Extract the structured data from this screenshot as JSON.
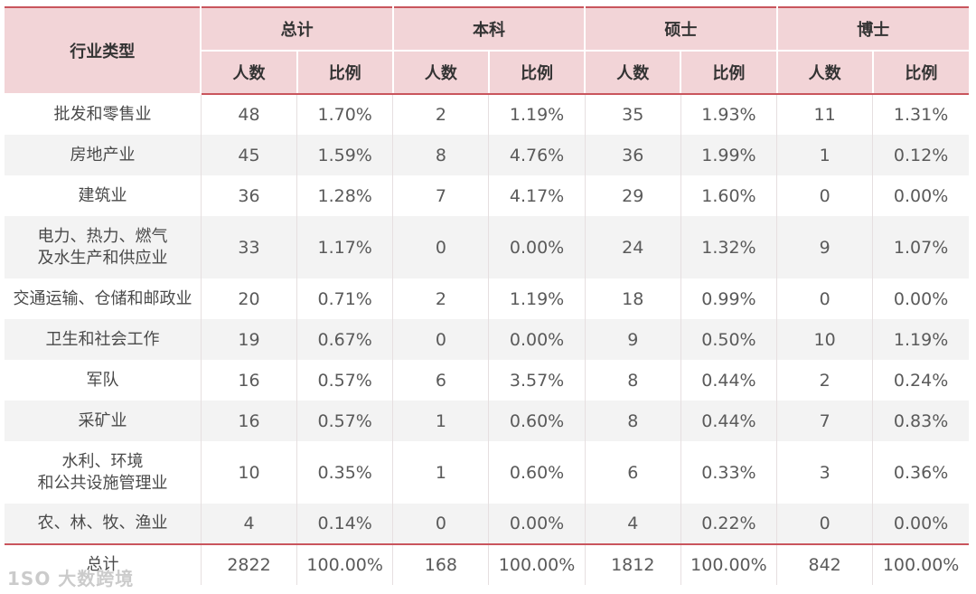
{
  "header": {
    "industry_label": "行业类型",
    "groups": [
      "总计",
      "本科",
      "硕士",
      "博士"
    ],
    "sub": [
      "人数",
      "比例"
    ]
  },
  "rows": [
    {
      "ind_lines": [
        "批发和零售业"
      ],
      "vals": [
        "48",
        "1.70%",
        "2",
        "1.19%",
        "35",
        "1.93%",
        "11",
        "1.31%"
      ]
    },
    {
      "ind_lines": [
        "房地产业"
      ],
      "vals": [
        "45",
        "1.59%",
        "8",
        "4.76%",
        "36",
        "1.99%",
        "1",
        "0.12%"
      ]
    },
    {
      "ind_lines": [
        "建筑业"
      ],
      "vals": [
        "36",
        "1.28%",
        "7",
        "4.17%",
        "29",
        "1.60%",
        "0",
        "0.00%"
      ]
    },
    {
      "ind_lines": [
        "电力、热力、燃气",
        "及水生产和供应业"
      ],
      "vals": [
        "33",
        "1.17%",
        "0",
        "0.00%",
        "24",
        "1.32%",
        "9",
        "1.07%"
      ]
    },
    {
      "ind_lines": [
        "交通运输、仓储和邮政业"
      ],
      "vals": [
        "20",
        "0.71%",
        "2",
        "1.19%",
        "18",
        "0.99%",
        "0",
        "0.00%"
      ]
    },
    {
      "ind_lines": [
        "卫生和社会工作"
      ],
      "vals": [
        "19",
        "0.67%",
        "0",
        "0.00%",
        "9",
        "0.50%",
        "10",
        "1.19%"
      ]
    },
    {
      "ind_lines": [
        "军队"
      ],
      "vals": [
        "16",
        "0.57%",
        "6",
        "3.57%",
        "8",
        "0.44%",
        "2",
        "0.24%"
      ]
    },
    {
      "ind_lines": [
        "采矿业"
      ],
      "vals": [
        "16",
        "0.57%",
        "1",
        "0.60%",
        "8",
        "0.44%",
        "7",
        "0.83%"
      ]
    },
    {
      "ind_lines": [
        "水利、环境",
        "和公共设施管理业"
      ],
      "vals": [
        "10",
        "0.35%",
        "1",
        "0.60%",
        "6",
        "0.33%",
        "3",
        "0.36%"
      ]
    },
    {
      "ind_lines": [
        "农、林、牧、渔业"
      ],
      "vals": [
        "4",
        "0.14%",
        "0",
        "0.00%",
        "4",
        "0.22%",
        "0",
        "0.00%"
      ]
    },
    {
      "ind_lines": [
        "总计"
      ],
      "vals": [
        "2822",
        "100.00%",
        "168",
        "100.00%",
        "1812",
        "100.00%",
        "842",
        "100.00%"
      ]
    }
  ],
  "watermark": "1SO 大数跨境"
}
